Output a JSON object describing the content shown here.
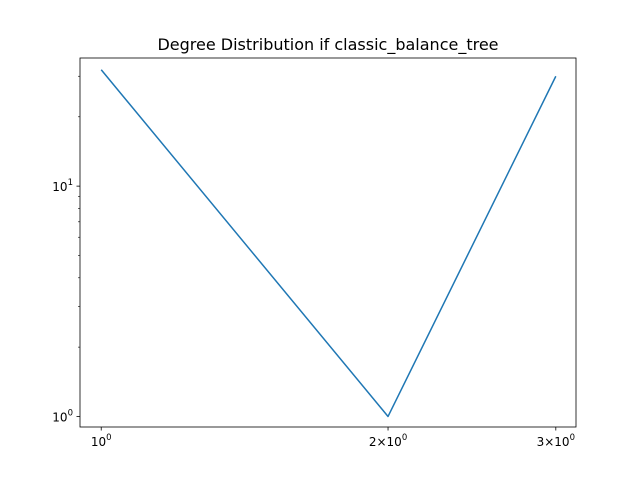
{
  "chart_data": {
    "type": "line",
    "title": "Degree Distribution if classic_balance_tree",
    "xlabel": "",
    "ylabel": "",
    "x_scale": "log",
    "y_scale": "log",
    "xlim": [
      0.95,
      3.15
    ],
    "ylim": [
      0.9,
      36
    ],
    "grid": false,
    "series": [
      {
        "color": "#1f77b4",
        "x": [
          1,
          2,
          3
        ],
        "y": [
          32,
          1,
          30
        ]
      }
    ],
    "x_ticks": [
      {
        "value": 1,
        "base": "10",
        "exp": "0",
        "label": "10^0"
      },
      {
        "value": 2,
        "coef": "2",
        "base": "10",
        "exp": "0",
        "label": "2×10^0"
      },
      {
        "value": 3,
        "coef": "3",
        "base": "10",
        "exp": "0",
        "label": "3×10^0"
      }
    ],
    "y_ticks": [
      {
        "value": 1,
        "base": "10",
        "exp": "0",
        "label": "10^0"
      },
      {
        "value": 10,
        "base": "10",
        "exp": "1",
        "label": "10^1"
      }
    ]
  }
}
